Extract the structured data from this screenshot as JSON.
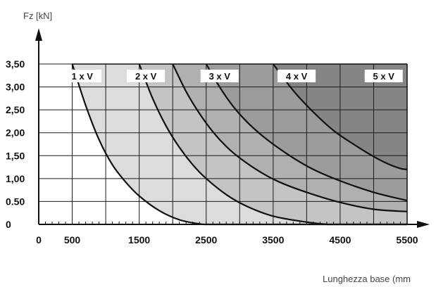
{
  "chart_data": {
    "type": "area",
    "ylabel": "Fz [kN]",
    "xlabel": "Lunghezza base (mm",
    "xlim": [
      0,
      5500
    ],
    "ylim": [
      0,
      3.5
    ],
    "x_ticks": [
      "0",
      "500",
      "1500",
      "2500",
      "3500",
      "4500",
      "5500"
    ],
    "x_tick_values": [
      0,
      500,
      1500,
      2500,
      3500,
      4500,
      5500
    ],
    "y_ticks": [
      "0",
      "0.50",
      "1,00",
      "1,50",
      "2,00",
      "2,50",
      "3,00",
      "3,50"
    ],
    "y_tick_values": [
      0,
      0.5,
      1.0,
      1.5,
      2.0,
      2.5,
      3.0,
      3.5
    ],
    "grid": true,
    "series": [
      {
        "name": "1 x V",
        "color": "#dcdcdc",
        "x": [
          500,
          700,
          900,
          1100,
          1300,
          1500,
          1800,
          2100,
          2400,
          2500
        ],
        "y": [
          3.5,
          2.6,
          1.85,
          1.3,
          0.92,
          0.62,
          0.3,
          0.1,
          0.01,
          0.0
        ]
      },
      {
        "name": "2 x V",
        "color": "#c4c4c4",
        "x": [
          1500,
          1700,
          1900,
          2100,
          2300,
          2500,
          2800,
          3100,
          3500,
          4000,
          4300
        ],
        "y": [
          3.5,
          2.75,
          2.15,
          1.68,
          1.3,
          1.0,
          0.65,
          0.4,
          0.18,
          0.05,
          0.0
        ]
      },
      {
        "name": "3 x V",
        "color": "#b0b0b0",
        "x": [
          2000,
          2200,
          2400,
          2600,
          2800,
          3000,
          3300,
          3600,
          4000,
          4500,
          5000,
          5500
        ],
        "y": [
          3.5,
          2.9,
          2.42,
          2.02,
          1.7,
          1.45,
          1.15,
          0.92,
          0.7,
          0.48,
          0.33,
          0.28
        ]
      },
      {
        "name": "4 x V",
        "color": "#9c9c9c",
        "x": [
          2500,
          2700,
          2900,
          3100,
          3300,
          3500,
          3800,
          4100,
          4500,
          5000,
          5500
        ],
        "y": [
          3.5,
          3.0,
          2.58,
          2.25,
          1.98,
          1.75,
          1.45,
          1.2,
          0.95,
          0.7,
          0.52
        ]
      },
      {
        "name": "5 x V",
        "color": "#858585",
        "x": [
          3500,
          3800,
          4100,
          4400,
          4700,
          5000,
          5200,
          5400,
          5500
        ],
        "y": [
          3.5,
          2.92,
          2.45,
          2.05,
          1.75,
          1.48,
          1.33,
          1.22,
          1.2
        ]
      }
    ],
    "band_labels": [
      "1 x V",
      "2 x V",
      "3 x V",
      "4 x V",
      "5 x V"
    ],
    "band_label_x": [
      650,
      1600,
      2700,
      3850,
      5150
    ]
  }
}
